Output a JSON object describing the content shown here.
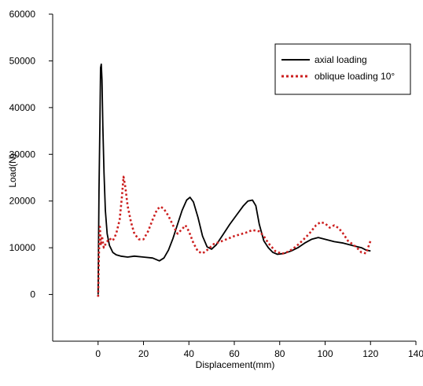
{
  "chart_data": {
    "type": "line",
    "title": "",
    "xlabel": "Displacement(mm)",
    "ylabel": "Load(N)",
    "xlim": [
      -20,
      140
    ],
    "ylim": [
      -10000,
      60000
    ],
    "x_ticks": [
      0,
      20,
      40,
      60,
      80,
      100,
      120,
      140
    ],
    "y_ticks": [
      0,
      10000,
      20000,
      30000,
      40000,
      50000,
      60000
    ],
    "grid": false,
    "legend_position": "top-right",
    "series": [
      {
        "name": "axial loading",
        "color": "#000000",
        "line_style": "solid",
        "points": [
          [
            0,
            0
          ],
          [
            0.4,
            22000
          ],
          [
            0.8,
            37000
          ],
          [
            1.1,
            48500
          ],
          [
            1.4,
            49300
          ],
          [
            1.7,
            46000
          ],
          [
            2.1,
            36000
          ],
          [
            2.6,
            26000
          ],
          [
            3.2,
            18000
          ],
          [
            4,
            13000
          ],
          [
            5,
            10500
          ],
          [
            6.5,
            9000
          ],
          [
            8,
            8500
          ],
          [
            10,
            8200
          ],
          [
            13,
            8000
          ],
          [
            16,
            8200
          ],
          [
            20,
            8000
          ],
          [
            24,
            7800
          ],
          [
            27,
            7200
          ],
          [
            29,
            7800
          ],
          [
            31,
            9500
          ],
          [
            33,
            12000
          ],
          [
            35,
            15000
          ],
          [
            37,
            18000
          ],
          [
            39,
            20200
          ],
          [
            40.5,
            20800
          ],
          [
            42,
            19800
          ],
          [
            44,
            16500
          ],
          [
            46,
            12500
          ],
          [
            48,
            10200
          ],
          [
            50,
            9700
          ],
          [
            52,
            10600
          ],
          [
            55,
            12800
          ],
          [
            58,
            15000
          ],
          [
            61,
            17000
          ],
          [
            64,
            19000
          ],
          [
            66,
            20000
          ],
          [
            68,
            20200
          ],
          [
            69.5,
            19000
          ],
          [
            71,
            15000
          ],
          [
            73,
            11500
          ],
          [
            75,
            10000
          ],
          [
            77,
            9000
          ],
          [
            79,
            8600
          ],
          [
            82,
            8800
          ],
          [
            85,
            9300
          ],
          [
            88,
            10000
          ],
          [
            91,
            11000
          ],
          [
            94,
            11800
          ],
          [
            97,
            12200
          ],
          [
            100,
            11800
          ],
          [
            104,
            11300
          ],
          [
            108,
            11000
          ],
          [
            112,
            10500
          ],
          [
            116,
            10000
          ],
          [
            118,
            9500
          ],
          [
            120,
            9300
          ]
        ]
      },
      {
        "name": "oblique loading 10°",
        "color": "#cc1f1f",
        "line_style": "dotted",
        "points": [
          [
            0,
            -500
          ],
          [
            0.4,
            9000
          ],
          [
            0.8,
            14500
          ],
          [
            1.2,
            10500
          ],
          [
            1.7,
            12500
          ],
          [
            2.5,
            10000
          ],
          [
            3.5,
            11000
          ],
          [
            5,
            12000
          ],
          [
            6.5,
            11500
          ],
          [
            8,
            13000
          ],
          [
            9.5,
            16000
          ],
          [
            10.5,
            21000
          ],
          [
            11.2,
            25200
          ],
          [
            12,
            23000
          ],
          [
            13,
            19000
          ],
          [
            14.5,
            15500
          ],
          [
            16,
            13000
          ],
          [
            18,
            11800
          ],
          [
            20,
            11800
          ],
          [
            22,
            13500
          ],
          [
            24,
            16000
          ],
          [
            26,
            18200
          ],
          [
            27.5,
            18800
          ],
          [
            29,
            18300
          ],
          [
            31,
            16800
          ],
          [
            33,
            14800
          ],
          [
            35,
            13000
          ],
          [
            37,
            14000
          ],
          [
            38.5,
            14800
          ],
          [
            40,
            13500
          ],
          [
            42,
            11000
          ],
          [
            44,
            9200
          ],
          [
            46,
            8800
          ],
          [
            48,
            9500
          ],
          [
            51,
            10800
          ],
          [
            55,
            11500
          ],
          [
            60,
            12500
          ],
          [
            65,
            13200
          ],
          [
            68,
            13800
          ],
          [
            71,
            13500
          ],
          [
            73,
            12500
          ],
          [
            75,
            11000
          ],
          [
            78,
            9300
          ],
          [
            81,
            8700
          ],
          [
            84,
            9200
          ],
          [
            87,
            10200
          ],
          [
            90,
            11500
          ],
          [
            93,
            13000
          ],
          [
            96,
            14800
          ],
          [
            98,
            15500
          ],
          [
            100,
            15200
          ],
          [
            102,
            14300
          ],
          [
            104,
            14800
          ],
          [
            106,
            14200
          ],
          [
            108,
            13000
          ],
          [
            110,
            11500
          ],
          [
            112,
            10800
          ],
          [
            114,
            10000
          ],
          [
            116,
            9000
          ],
          [
            118,
            8800
          ],
          [
            120,
            11500
          ]
        ]
      }
    ]
  }
}
